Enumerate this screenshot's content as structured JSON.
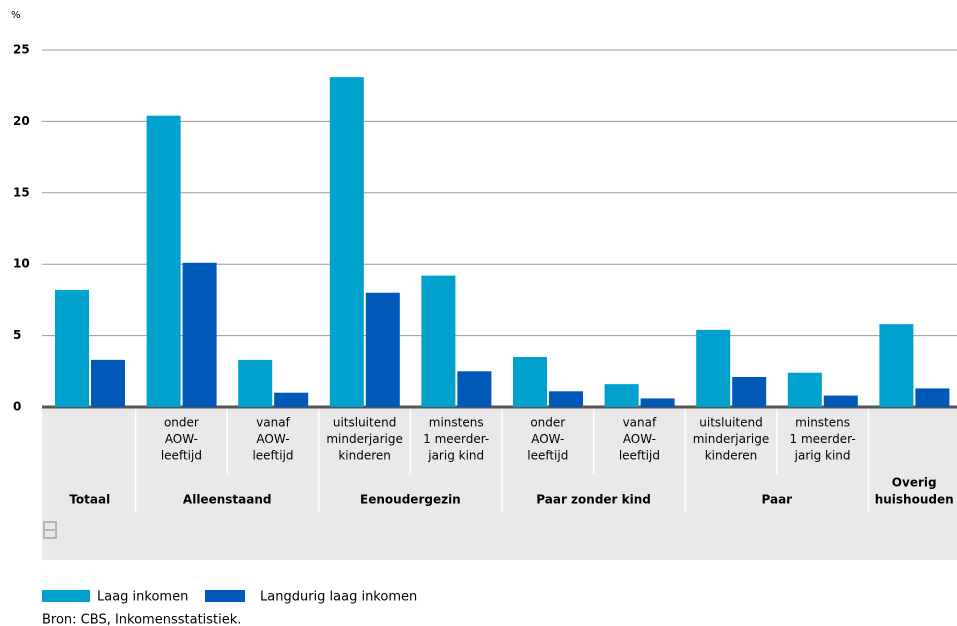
{
  "chart_data": {
    "type": "bar",
    "ylabel": "%",
    "ylim": [
      0,
      25
    ],
    "yticks": [
      0,
      5,
      10,
      15,
      20,
      25
    ],
    "grid": true,
    "legend": "bottom-left",
    "groups": [
      {
        "label": [
          "Totaal"
        ],
        "categories": [
          null
        ]
      },
      {
        "label": [
          "Alleenstaand"
        ],
        "categories": [
          [
            "onder",
            "AOW-",
            "leeftijd"
          ],
          [
            "vanaf",
            "AOW-",
            "leeftijd"
          ]
        ]
      },
      {
        "label": [
          "Eenoudergezin"
        ],
        "categories": [
          [
            "uitsluitend",
            "minderjarige",
            "kinderen"
          ],
          [
            "minstens",
            "1 meerder-",
            "jarig kind"
          ]
        ]
      },
      {
        "label": [
          "Paar zonder kind"
        ],
        "categories": [
          [
            "onder",
            "AOW-",
            "leeftijd"
          ],
          [
            "vanaf",
            "AOW-",
            "leeftijd"
          ]
        ]
      },
      {
        "label": [
          "Paar"
        ],
        "categories": [
          [
            "uitsluitend",
            "minderjarige",
            "kinderen"
          ],
          [
            "minstens",
            "1 meerder-",
            "jarig kind"
          ]
        ]
      },
      {
        "label": [
          "Overig",
          "huishouden"
        ],
        "categories": [
          null
        ]
      }
    ],
    "series": [
      {
        "name": "Laag inkomen",
        "color": "#00a1cd",
        "values": [
          8.2,
          20.4,
          3.3,
          23.1,
          9.2,
          3.5,
          1.6,
          5.4,
          2.4,
          5.8
        ]
      },
      {
        "name": "Langdurig laag inkomen",
        "color": "#0058b8",
        "values": [
          3.3,
          10.1,
          1.0,
          8.0,
          2.5,
          1.1,
          0.6,
          2.1,
          0.8,
          1.3
        ]
      }
    ],
    "source": "Bron: CBS, Inkomensstatistiek."
  }
}
